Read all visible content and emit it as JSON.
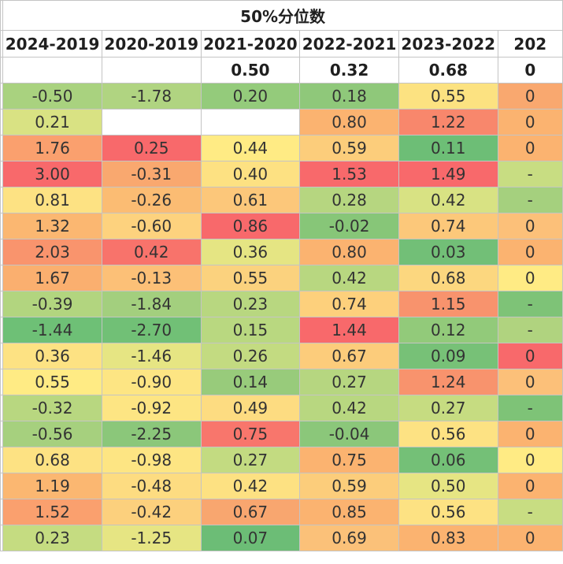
{
  "title": "50%分位数",
  "headers": [
    "2024-2019",
    "2020-2019",
    "2021-2020",
    "2022-2021",
    "2023-2022",
    "202"
  ],
  "summary_row": [
    "",
    "",
    "0.50",
    "0.32",
    "0.68",
    "0"
  ],
  "rows": [
    [
      "-0.50",
      "-1.78",
      "0.20",
      "0.18",
      "0.55",
      "0"
    ],
    [
      "0.21",
      "",
      "",
      "0.80",
      "1.22",
      "0"
    ],
    [
      "1.76",
      "0.25",
      "0.44",
      "0.59",
      "0.11",
      "0"
    ],
    [
      "3.00",
      "-0.31",
      "0.40",
      "1.53",
      "1.49",
      "-"
    ],
    [
      "0.81",
      "-0.26",
      "0.61",
      "0.28",
      "0.42",
      "-"
    ],
    [
      "1.32",
      "-0.60",
      "0.86",
      "-0.02",
      "0.74",
      "0"
    ],
    [
      "2.03",
      "0.42",
      "0.36",
      "0.80",
      "0.03",
      "0"
    ],
    [
      "1.67",
      "-0.13",
      "0.55",
      "0.42",
      "0.68",
      "0"
    ],
    [
      "-0.39",
      "-1.84",
      "0.23",
      "0.74",
      "1.15",
      "-"
    ],
    [
      "-1.44",
      "-2.70",
      "0.15",
      "1.44",
      "0.12",
      "-"
    ],
    [
      "0.36",
      "-1.46",
      "0.26",
      "0.67",
      "0.09",
      "0"
    ],
    [
      "0.55",
      "-0.90",
      "0.14",
      "0.27",
      "1.24",
      "0"
    ],
    [
      "-0.32",
      "-0.92",
      "0.49",
      "0.42",
      "0.27",
      "-"
    ],
    [
      "-0.56",
      "-2.25",
      "0.75",
      "-0.04",
      "0.56",
      "0"
    ],
    [
      "0.68",
      "-0.98",
      "0.27",
      "0.75",
      "0.06",
      "0"
    ],
    [
      "1.19",
      "-0.48",
      "0.42",
      "0.59",
      "0.50",
      "0"
    ],
    [
      "1.52",
      "-0.42",
      "0.67",
      "0.85",
      "0.56",
      "-"
    ],
    [
      "0.23",
      "-1.25",
      "0.07",
      "0.69",
      "0.83",
      "0"
    ]
  ],
  "colors": [
    [
      "#a9d27f",
      "#b0d481",
      "#94cb7b",
      "#8fc87a",
      "#fce281",
      "#f9a86f"
    ],
    [
      "#d9e283",
      "#ffffff",
      "#ffffff",
      "#fbb370",
      "#f8876c",
      "#fbb370"
    ],
    [
      "#faa06e",
      "#f8696b",
      "#ffeb84",
      "#fccd7b",
      "#6dbe76",
      "#fbb370"
    ],
    [
      "#f8696b",
      "#f9a86f",
      "#fde182",
      "#f8696b",
      "#f8696b",
      "#c8dd82"
    ],
    [
      "#fde283",
      "#fbbc73",
      "#fcc77a",
      "#b6d680",
      "#d8e283",
      "#a5d07e"
    ],
    [
      "#fbb771",
      "#fdd27e",
      "#f8696b",
      "#87c678",
      "#fcc87a",
      "#fcc079"
    ],
    [
      "#f9946d",
      "#f8736b",
      "#e5e583",
      "#fbb370",
      "#72bf77",
      "#fbb370"
    ],
    [
      "#faaf6f",
      "#fcc077",
      "#fbd27e",
      "#b8d780",
      "#fcd77f",
      "#ffeb84"
    ],
    [
      "#b2d57f",
      "#a3cf7e",
      "#b8d780",
      "#fdd07c",
      "#f8936d",
      "#7ec377"
    ],
    [
      "#6ec076",
      "#71c076",
      "#b9d880",
      "#f8696b",
      "#92ca7a",
      "#b0d37f"
    ],
    [
      "#fde283",
      "#e6e583",
      "#c3db81",
      "#fccc7b",
      "#77c177",
      "#f8696b"
    ],
    [
      "#ffeb84",
      "#fde583",
      "#98cb7b",
      "#b6d680",
      "#f8936d",
      "#fcc079"
    ],
    [
      "#b8d780",
      "#fde583",
      "#fddc81",
      "#b8d780",
      "#c6dc81",
      "#7ec377"
    ],
    [
      "#a6d07e",
      "#8bc77a",
      "#f8766c",
      "#8bc77a",
      "#fde283",
      "#fbb370"
    ],
    [
      "#fde283",
      "#fde583",
      "#c3db81",
      "#fbb370",
      "#74c077",
      "#ffeb84"
    ],
    [
      "#fbb771",
      "#fddc81",
      "#fde182",
      "#fccd7b",
      "#e6e583",
      "#fbb370"
    ],
    [
      "#faa06e",
      "#fcd07d",
      "#f8a66f",
      "#fbb370",
      "#fde283",
      "#c8dd82"
    ],
    [
      "#c5dc81",
      "#e6e583",
      "#6cbd76",
      "#fbc179",
      "#fbb370",
      "#fbb370"
    ]
  ]
}
